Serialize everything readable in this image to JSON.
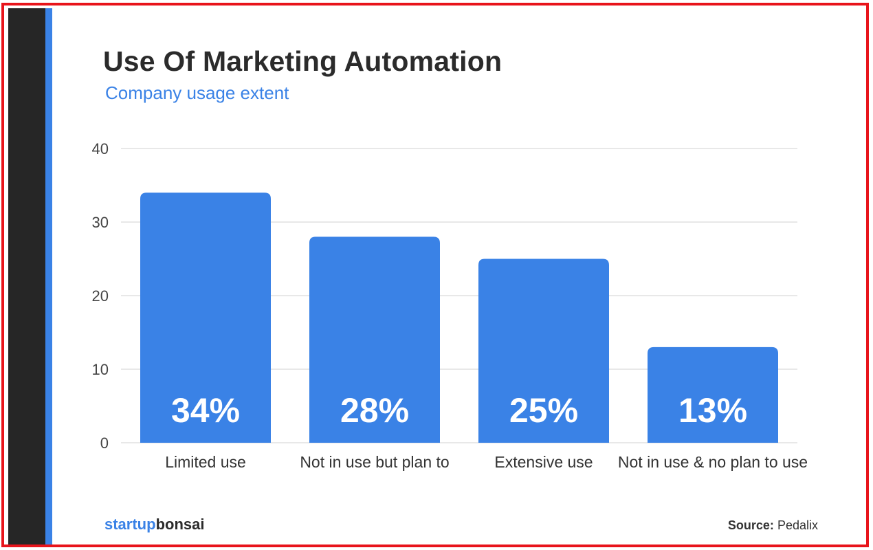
{
  "colors": {
    "bar": "#3a82e6",
    "border": "#e8141b",
    "sidebar": "#262626",
    "title": "#2b2b2b",
    "grid": "#e0e0e0"
  },
  "chart_data": {
    "type": "bar",
    "title": "Use Of Marketing Automation",
    "subtitle": "Company usage extent",
    "categories": [
      "Limited use",
      "Not in use but plan to",
      "Extensive use",
      "Not in use & no plan to use"
    ],
    "values": [
      34,
      28,
      25,
      13
    ],
    "data_labels": [
      "34%",
      "28%",
      "25%",
      "13%"
    ],
    "ylim": [
      0,
      40
    ],
    "yticks": [
      0,
      10,
      20,
      30,
      40
    ],
    "ytick_labels": [
      "0",
      "10",
      "20",
      "30",
      "40"
    ],
    "xlabel": "",
    "ylabel": "",
    "grid": true,
    "legend": "none"
  },
  "branding": {
    "logo_part1": "startup",
    "logo_part2": "bonsai"
  },
  "source": {
    "label": "Source:",
    "value": "Pedalix"
  }
}
